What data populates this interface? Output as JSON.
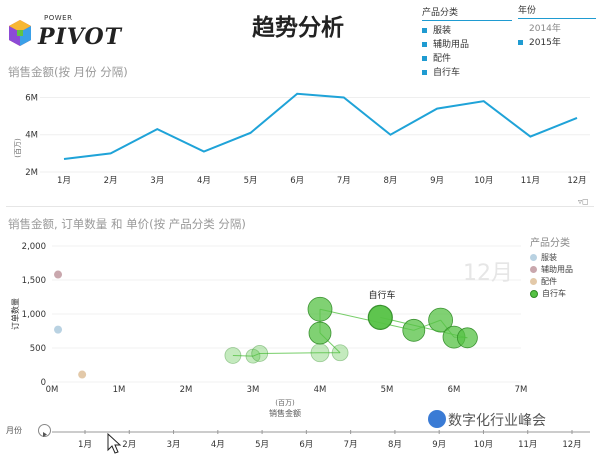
{
  "header": {
    "title": "趋势分析",
    "logo_power": "POWER",
    "logo_pivot": "PIVOT"
  },
  "slicer_category": {
    "header": "产品分类",
    "items": [
      "服装",
      "辅助用品",
      "配件",
      "自行车"
    ]
  },
  "slicer_year": {
    "header": "年份",
    "items": [
      "2014年",
      "2015年"
    ],
    "selected": "2015年"
  },
  "line_chart_title": "销售金额(按 月份 分隔)",
  "bubble_chart_title": "销售金额, 订单数量 和 单价(按 产品分类 分隔)",
  "play_axis": {
    "label": "月份",
    "months": [
      "1月",
      "2月",
      "3月",
      "4月",
      "5月",
      "6月",
      "7月",
      "8月",
      "9月",
      "10月",
      "11月",
      "12月"
    ]
  },
  "watermark": "数字化行业峰会",
  "colors": {
    "line": "#1fa3d8",
    "accent": "#1f9bd1",
    "bike_fill": "#55c244",
    "bike_stroke": "#2e8a23",
    "clothing": "#b9d2e2",
    "accessories": "#c9a7ad",
    "parts": "#e3c9a9"
  },
  "chart_data": [
    {
      "type": "line",
      "title": "销售金额(按 月份 分隔)",
      "ylabel": "(百万)",
      "categories": [
        "1月",
        "2月",
        "3月",
        "4月",
        "5月",
        "6月",
        "7月",
        "8月",
        "9月",
        "10月",
        "11月",
        "12月"
      ],
      "values": [
        2.7,
        3.0,
        4.3,
        3.1,
        4.1,
        6.2,
        6.0,
        4.0,
        5.4,
        5.8,
        3.9,
        4.9
      ],
      "yticks": [
        "2M",
        "4M",
        "6M"
      ],
      "ylim": [
        2,
        6.4
      ]
    },
    {
      "type": "scatter",
      "title": "销售金额, 订单数量 和 单价(按 产品分类 分隔)",
      "xlabel": "销售金额",
      "xunit": "(百万)",
      "ylabel": "订单数量",
      "xticks": [
        "0M",
        "1M",
        "2M",
        "3M",
        "4M",
        "5M",
        "6M",
        "7M"
      ],
      "yticks": [
        "0",
        "500",
        "1,000",
        "1,500",
        "2,000"
      ],
      "xlim": [
        0,
        7
      ],
      "ylim": [
        0,
        2000
      ],
      "play_label": "12月",
      "series_label": "自行车",
      "legend_title": "产品分类",
      "legend": [
        "服装",
        "辅助用品",
        "配件",
        "自行车"
      ],
      "series": [
        {
          "name": "服装",
          "points": [
            [
              0.09,
              770
            ]
          ]
        },
        {
          "name": "辅助用品",
          "points": [
            [
              0.09,
              1580
            ]
          ]
        },
        {
          "name": "配件",
          "points": [
            [
              0.45,
              110
            ]
          ]
        },
        {
          "name": "自行车",
          "trail": true,
          "points": [
            [
              2.7,
              390,
              8
            ],
            [
              3.0,
              380,
              7
            ],
            [
              3.1,
              420,
              8
            ],
            [
              4.0,
              430,
              9
            ],
            [
              4.3,
              430,
              8
            ],
            [
              4.0,
              720,
              11
            ],
            [
              4.0,
              1070,
              12
            ],
            [
              5.4,
              760,
              11
            ],
            [
              5.8,
              910,
              12
            ],
            [
              6.0,
              660,
              11
            ],
            [
              6.2,
              650,
              10
            ],
            [
              4.9,
              950,
              12
            ]
          ]
        }
      ]
    }
  ]
}
